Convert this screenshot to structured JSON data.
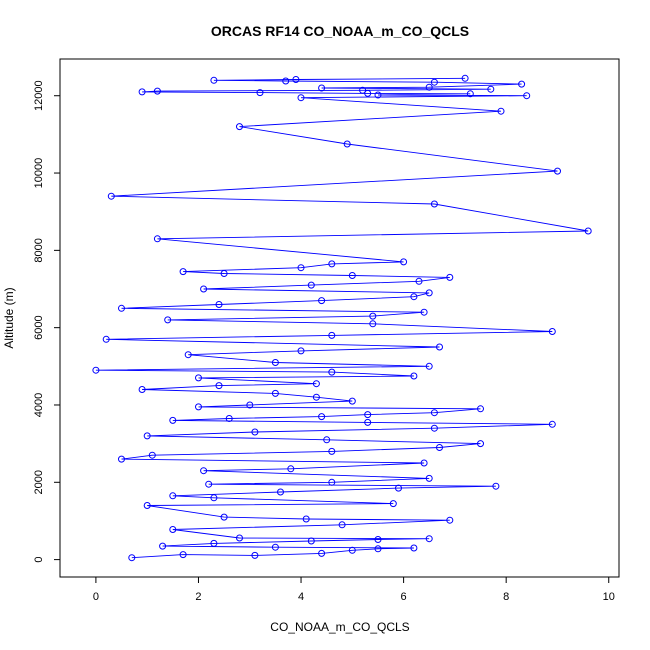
{
  "chart_data": {
    "type": "scatter",
    "title": "ORCAS RF14 CO_NOAA_m_CO_QCLS",
    "xlabel": "CO_NOAA_m_CO_QCLS",
    "ylabel": "Altitude (m)",
    "xlim": [
      -0.7,
      10.2
    ],
    "ylim": [
      -450,
      12950
    ],
    "xticks": [
      0,
      2,
      4,
      6,
      8,
      10
    ],
    "yticks": [
      0,
      2000,
      4000,
      6000,
      8000,
      10000,
      12000
    ],
    "connected": true,
    "color": "#0000ff",
    "grid": false,
    "legend": "none",
    "series": [
      {
        "x": [
          0.7,
          1.7,
          3.1,
          4.4,
          5.0,
          5.5,
          6.2,
          3.5,
          1.3,
          2.3,
          4.2,
          5.5,
          6.5,
          2.8,
          1.5,
          4.8,
          6.9,
          4.1,
          2.5,
          1.0,
          5.8,
          2.3,
          1.5,
          3.6,
          5.9,
          7.8,
          2.2,
          4.6,
          6.5,
          2.1,
          3.8,
          6.4,
          0.5,
          1.1,
          4.6,
          6.7,
          7.5,
          4.5,
          1.0,
          3.1,
          6.6,
          8.9,
          5.3,
          1.5,
          2.6,
          4.4,
          5.3,
          6.6,
          7.5,
          2.0,
          3.0,
          5.0,
          4.3,
          3.5,
          0.9,
          2.4,
          4.3,
          2.0,
          6.2,
          4.6,
          0.0,
          6.5,
          3.5,
          1.8,
          4.0,
          6.7,
          0.2,
          4.6,
          8.9,
          5.4,
          1.4,
          5.4,
          6.4,
          0.5,
          2.4,
          4.4,
          6.2,
          6.5,
          2.1,
          4.2,
          6.3,
          6.9,
          5.0,
          2.5,
          1.7,
          4.0,
          4.6,
          6.0,
          1.2,
          9.6,
          6.6,
          0.3,
          9.0,
          4.9,
          2.8,
          7.9,
          4.0,
          8.4,
          5.5,
          7.3,
          5.3,
          3.2,
          0.9,
          1.2,
          5.2,
          7.7,
          4.4,
          6.5,
          8.3,
          6.6,
          3.7,
          2.3,
          3.9,
          7.2
        ],
        "y": [
          50,
          130,
          110,
          160,
          240,
          280,
          300,
          320,
          350,
          420,
          480,
          520,
          540,
          560,
          780,
          900,
          1020,
          1050,
          1100,
          1400,
          1450,
          1600,
          1650,
          1750,
          1850,
          1900,
          1950,
          2000,
          2100,
          2300,
          2350,
          2500,
          2600,
          2700,
          2800,
          2900,
          3000,
          3100,
          3200,
          3300,
          3400,
          3500,
          3550,
          3600,
          3650,
          3700,
          3750,
          3800,
          3900,
          3950,
          4000,
          4100,
          4200,
          4300,
          4400,
          4500,
          4550,
          4700,
          4750,
          4850,
          4900,
          5000,
          5100,
          5300,
          5400,
          5500,
          5700,
          5800,
          5900,
          6100,
          6200,
          6300,
          6400,
          6500,
          6600,
          6700,
          6800,
          6900,
          7000,
          7100,
          7200,
          7300,
          7350,
          7400,
          7450,
          7550,
          7650,
          7700,
          8300,
          8500,
          9200,
          9400,
          10050,
          10750,
          11200,
          11600,
          11950,
          12000,
          12020,
          12050,
          12060,
          12080,
          12100,
          12120,
          12140,
          12170,
          12200,
          12220,
          12300,
          12350,
          12380,
          12400,
          12420,
          12450
        ]
      }
    ]
  }
}
